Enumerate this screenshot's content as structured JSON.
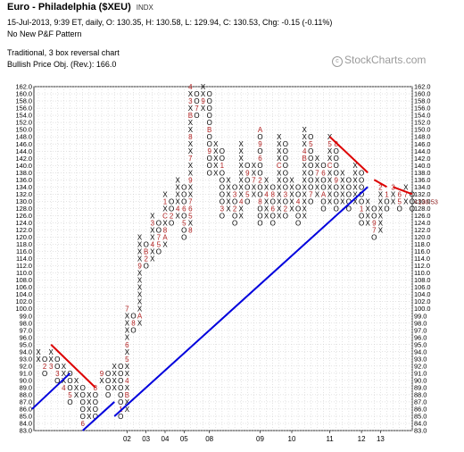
{
  "header": {
    "title": "Euro - Philadelphia ($XEU)",
    "symbol_tag": "INDX",
    "ohlc": "15-Jul-2013, 9:39 ET, daily, O: 130.35, H: 130.58, L: 129.94, C: 130.53, Chg: -0.15 (-0.11%)",
    "pattern": "No New P&F Pattern",
    "chart_type": "Traditional, 3 box reversal chart",
    "price_objective": "Bullish Price Obj. (Rev.): 166.0"
  },
  "watermark": {
    "symbol": "c",
    "text": "StockCharts.com"
  },
  "chart_data": {
    "type": "point-and-figure",
    "box_size": 2,
    "reversal": 3,
    "y_range": [
      83,
      162
    ],
    "y_ticks": [
      83,
      84,
      85,
      86,
      87,
      88,
      89,
      90,
      91,
      92,
      93,
      94,
      95,
      96,
      97,
      98,
      99,
      100,
      102,
      104,
      106,
      108,
      110,
      112,
      114,
      116,
      118,
      120,
      122,
      124,
      126,
      128,
      130,
      132,
      134,
      136,
      138,
      140,
      142,
      144,
      146,
      148,
      150,
      152,
      154,
      156,
      158,
      160,
      162
    ],
    "date_labels": [
      {
        "label": "02",
        "column": 14
      },
      {
        "label": "03",
        "column": 17
      },
      {
        "label": "04",
        "column": 20
      },
      {
        "label": "05",
        "column": 23
      },
      {
        "label": "08",
        "column": 27
      },
      {
        "label": "09",
        "column": 35
      },
      {
        "label": "10",
        "column": 40
      },
      {
        "label": "11",
        "column": 46
      },
      {
        "label": "12",
        "column": 51
      },
      {
        "label": "13",
        "column": 54
      }
    ],
    "last_price_label": "130.53",
    "columns": [
      {
        "type": "X",
        "low": 93,
        "high": 94,
        "marks": {}
      },
      {
        "type": "O",
        "low": 91,
        "high": 93,
        "marks": {
          "92": "2"
        }
      },
      {
        "type": "X",
        "low": 92,
        "high": 94,
        "marks": {
          "92": "3"
        }
      },
      {
        "type": "O",
        "low": 90,
        "high": 93,
        "marks": {
          "91": "3"
        }
      },
      {
        "type": "X",
        "low": 89,
        "high": 92,
        "marks": {
          "89": "4"
        }
      },
      {
        "type": "O",
        "low": 87,
        "high": 91,
        "marks": {
          "88": "5"
        }
      },
      {
        "type": "X",
        "low": 88,
        "high": 90,
        "marks": {}
      },
      {
        "type": "O",
        "low": 84,
        "high": 89,
        "marks": {
          "84": "6"
        }
      },
      {
        "type": "X",
        "low": 85,
        "high": 88,
        "marks": {}
      },
      {
        "type": "O",
        "low": 85,
        "high": 89,
        "marks": {
          "89": "8"
        }
      },
      {
        "type": "X",
        "low": 90,
        "high": 91,
        "marks": {
          "91": "9"
        }
      },
      {
        "type": "O",
        "low": 88,
        "high": 91,
        "marks": {}
      },
      {
        "type": "X",
        "low": 89,
        "high": 92,
        "marks": {}
      },
      {
        "type": "O",
        "low": 85,
        "high": 92,
        "marks": {
          "86": "1"
        }
      },
      {
        "type": "X",
        "low": 86,
        "high": 100,
        "marks": {
          "88": "B",
          "90": "4",
          "93": "5",
          "95": "6",
          "100": "7"
        }
      },
      {
        "type": "O",
        "low": 97,
        "high": 99,
        "marks": {
          "98": "8"
        }
      },
      {
        "type": "X",
        "low": 98,
        "high": 120,
        "marks": {
          "99": "A",
          "103": "C",
          "107": "8",
          "109": "3",
          "112": "9",
          "117": "1"
        }
      },
      {
        "type": "O",
        "low": 112,
        "high": 118,
        "marks": {
          "114": "2",
          "116": "B"
        }
      },
      {
        "type": "X",
        "low": 114,
        "high": 126,
        "marks": {
          "118": "4",
          "124": "3"
        }
      },
      {
        "type": "O",
        "low": 116,
        "high": 124,
        "marks": {
          "118": "5",
          "120": "7"
        }
      },
      {
        "type": "X",
        "low": 118,
        "high": 132,
        "marks": {
          "120": "A",
          "122": "8",
          "126": "C",
          "130": "1"
        }
      },
      {
        "type": "O",
        "low": 124,
        "high": 130,
        "marks": {
          "126": "2"
        }
      },
      {
        "type": "X",
        "low": 126,
        "high": 136,
        "marks": {
          "128": "4"
        }
      },
      {
        "type": "O",
        "low": 120,
        "high": 134,
        "marks": {
          "124": "5",
          "128": "6"
        }
      },
      {
        "type": "X",
        "low": 122,
        "high": 162,
        "marks": {
          "122": "8",
          "126": "5",
          "128": "6",
          "130": "7",
          "136": "9",
          "142": "7",
          "148": "8",
          "154": "B",
          "158": "3",
          "162": "4"
        }
      },
      {
        "type": "O",
        "low": 154,
        "high": 160,
        "marks": {
          "156": "7"
        }
      },
      {
        "type": "X",
        "low": 156,
        "high": 162,
        "marks": {
          "158": "9"
        }
      },
      {
        "type": "O",
        "low": 138,
        "high": 160,
        "marks": {
          "144": "9",
          "150": "B"
        }
      },
      {
        "type": "X",
        "low": 138,
        "high": 146,
        "marks": {}
      },
      {
        "type": "O",
        "low": 126,
        "high": 144,
        "marks": {
          "128": "3",
          "140": "1"
        }
      },
      {
        "type": "X",
        "low": 128,
        "high": 136,
        "marks": {}
      },
      {
        "type": "O",
        "low": 124,
        "high": 134,
        "marks": {
          "128": "2",
          "132": "3"
        }
      },
      {
        "type": "X",
        "low": 126,
        "high": 146,
        "marks": {
          "130": "4"
        }
      },
      {
        "type": "O",
        "low": 130,
        "high": 140,
        "marks": {
          "132": "5",
          "138": "9"
        }
      },
      {
        "type": "X",
        "low": 132,
        "high": 140,
        "marks": {
          "136": "7"
        }
      },
      {
        "type": "O",
        "low": 124,
        "high": 150,
        "marks": {
          "130": "8",
          "136": "2",
          "142": "6",
          "146": "9",
          "150": "A"
        }
      },
      {
        "type": "X",
        "low": 126,
        "high": 136,
        "marks": {
          "132": "4"
        }
      },
      {
        "type": "O",
        "low": 124,
        "high": 134,
        "marks": {
          "128": "6",
          "132": "8"
        }
      },
      {
        "type": "X",
        "low": 126,
        "high": 148,
        "marks": {
          "140": "C"
        }
      },
      {
        "type": "O",
        "low": 126,
        "high": 146,
        "marks": {
          "128": "2",
          "132": "3"
        }
      },
      {
        "type": "X",
        "low": 128,
        "high": 136,
        "marks": {}
      },
      {
        "type": "O",
        "low": 124,
        "high": 134,
        "marks": {
          "130": "4",
          "136": "8"
        }
      },
      {
        "type": "X",
        "low": 126,
        "high": 150,
        "marks": {
          "142": "B",
          "144": "4"
        }
      },
      {
        "type": "O",
        "low": 130,
        "high": 148,
        "marks": {
          "132": "7",
          "146": "5"
        }
      },
      {
        "type": "X",
        "low": 132,
        "high": 142,
        "marks": {
          "138": "7"
        }
      },
      {
        "type": "O",
        "low": 128,
        "high": 140,
        "marks": {
          "132": "A",
          "138": "6"
        }
      },
      {
        "type": "X",
        "low": 130,
        "high": 148,
        "marks": {
          "140": "C",
          "146": "5"
        }
      },
      {
        "type": "O",
        "low": 128,
        "high": 146,
        "marks": {
          "136": "9",
          "146": "8",
          "148": "6"
        }
      },
      {
        "type": "X",
        "low": 130,
        "high": 138,
        "marks": {}
      },
      {
        "type": "O",
        "low": 128,
        "high": 136,
        "marks": {}
      },
      {
        "type": "X",
        "low": 130,
        "high": 140,
        "marks": {}
      },
      {
        "type": "O",
        "low": 124,
        "high": 138,
        "marks": {
          "128": "1"
        }
      },
      {
        "type": "X",
        "low": 124,
        "high": 130,
        "marks": {}
      },
      {
        "type": "O",
        "low": 120,
        "high": 128,
        "marks": {
          "122": "7",
          "124": "9"
        }
      },
      {
        "type": "X",
        "low": 122,
        "high": 134,
        "marks": {
          "134": "2"
        }
      },
      {
        "type": "O",
        "low": 128,
        "high": 132,
        "marks": {
          "132": "1"
        }
      },
      {
        "type": "X",
        "low": 130,
        "high": 134,
        "marks": {
          "134": "3"
        }
      },
      {
        "type": "O",
        "low": 128,
        "high": 132,
        "marks": {
          "130": "5",
          "132": "6"
        }
      },
      {
        "type": "X",
        "low": 130,
        "high": 134,
        "marks": {
          "132": "7"
        }
      },
      {
        "type": "O",
        "low": 128,
        "high": 132,
        "marks": {}
      }
    ],
    "trendlines": [
      {
        "color": "#0000dd",
        "from": {
          "column": -1,
          "value": 86
        },
        "to": {
          "column": 5,
          "value": 91
        }
      },
      {
        "color": "#0000dd",
        "from": {
          "column": 7,
          "value": 83
        },
        "to": {
          "column": 12,
          "value": 87
        }
      },
      {
        "color": "#0000dd",
        "from": {
          "column": 12,
          "value": 85
        },
        "to": {
          "column": 52,
          "value": 134
        }
      },
      {
        "color": "#dd0000",
        "from": {
          "column": 2,
          "value": 95
        },
        "to": {
          "column": 9,
          "value": 89
        }
      },
      {
        "color": "#dd0000",
        "from": {
          "column": 46,
          "value": 148
        },
        "to": {
          "column": 52,
          "value": 138
        }
      },
      {
        "color": "#dd0000",
        "from": {
          "column": 53,
          "value": 136
        },
        "to": {
          "column": 55,
          "value": 134
        }
      },
      {
        "color": "#dd0000",
        "from": {
          "column": 56,
          "value": 134
        },
        "to": {
          "column": 59,
          "value": 132
        }
      }
    ],
    "colors": {
      "x_mark": "#000000",
      "o_mark": "#000000",
      "month_mark": "#b22222",
      "support": "#0000dd",
      "resistance": "#dd0000",
      "grid": "#c8c8c8"
    },
    "grid": true
  }
}
